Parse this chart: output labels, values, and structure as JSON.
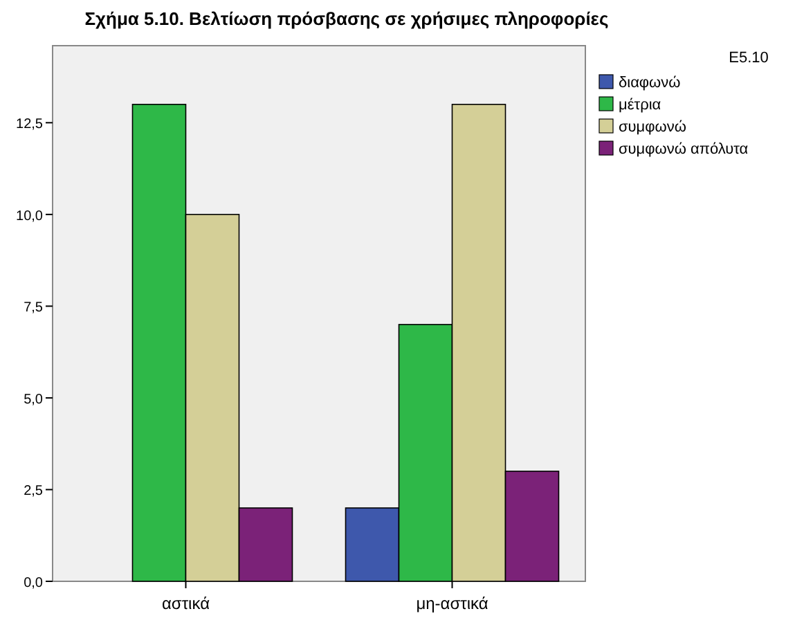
{
  "chart_data": {
    "type": "bar",
    "title": "Σχήμα 5.10. Βελτίωση πρόσβασης σε χρήσιμες πληροφορίες",
    "legend_title": "E5.10",
    "categories": [
      "αστικά",
      "μη-αστικά"
    ],
    "series": [
      {
        "name": "διαφωνώ",
        "color": "#3e58ac",
        "values": [
          null,
          2
        ]
      },
      {
        "name": "μέτρια",
        "color": "#2eb848",
        "values": [
          13,
          7
        ]
      },
      {
        "name": "συμφωνώ",
        "color": "#d4cf97",
        "values": [
          10,
          13
        ]
      },
      {
        "name": "συμφωνώ απόλυτα",
        "color": "#7b2278",
        "values": [
          2,
          3
        ]
      }
    ],
    "ylim": [
      0,
      14.6
    ],
    "yticks": [
      {
        "value": 0,
        "label": "0,0"
      },
      {
        "value": 2.5,
        "label": "2,5"
      },
      {
        "value": 5,
        "label": "5,0"
      },
      {
        "value": 7.5,
        "label": "7,5"
      },
      {
        "value": 10,
        "label": "10,0"
      },
      {
        "value": 12.5,
        "label": "12,5"
      }
    ],
    "grid": false,
    "legend": "right"
  }
}
